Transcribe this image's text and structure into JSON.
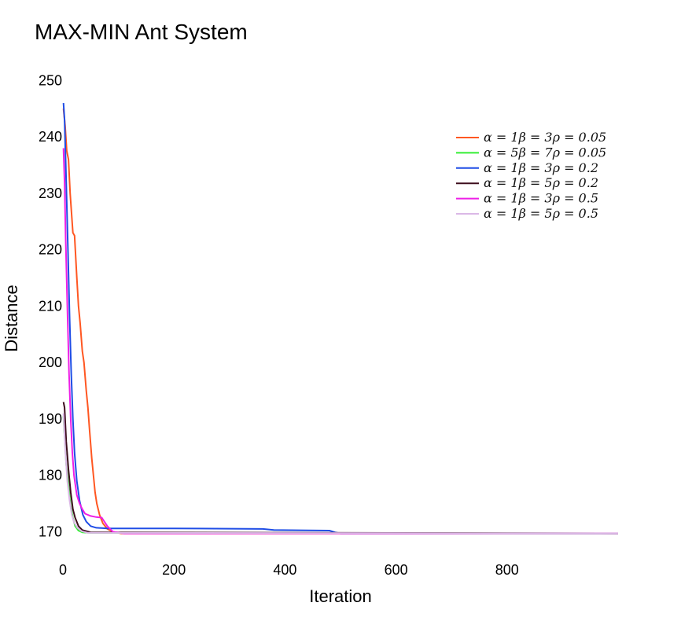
{
  "chart_data": {
    "type": "line",
    "title": "MAX-MIN Ant System",
    "xlabel": "Iteration",
    "ylabel": "Distance",
    "xlim": [
      0,
      1000
    ],
    "ylim": [
      167,
      252
    ],
    "xticks": [
      0,
      200,
      400,
      600,
      800
    ],
    "yticks": [
      170,
      180,
      190,
      200,
      210,
      220,
      230,
      240,
      250
    ],
    "grid": false,
    "legend_position": "top-right",
    "series": [
      {
        "name": "α = 1β = 3ρ = 0.05",
        "color": "#ff5722",
        "points": [
          [
            1,
            245
          ],
          [
            4,
            242
          ],
          [
            7,
            237.5
          ],
          [
            10,
            236
          ],
          [
            13,
            230
          ],
          [
            18,
            223
          ],
          [
            21,
            222.5
          ],
          [
            25,
            215
          ],
          [
            28,
            210
          ],
          [
            31,
            207
          ],
          [
            35,
            202
          ],
          [
            38,
            200
          ],
          [
            42,
            195
          ],
          [
            45,
            192
          ],
          [
            48,
            188
          ],
          [
            52,
            183
          ],
          [
            55,
            180
          ],
          [
            58,
            177
          ],
          [
            61,
            175
          ],
          [
            66,
            173
          ],
          [
            72,
            171.5
          ],
          [
            80,
            170.5
          ],
          [
            90,
            170
          ],
          [
            105,
            169.7
          ],
          [
            120,
            169.7
          ],
          [
            1000,
            169.7
          ]
        ]
      },
      {
        "name": "α = 5β = 7ρ = 0.05",
        "color": "#33ee33",
        "points": [
          [
            1,
            190.5
          ],
          [
            3,
            187
          ],
          [
            6,
            182
          ],
          [
            10,
            178
          ],
          [
            14,
            174.5
          ],
          [
            18,
            172.5
          ],
          [
            22,
            171
          ],
          [
            28,
            170.2
          ],
          [
            35,
            169.9
          ],
          [
            50,
            169.8
          ],
          [
            1000,
            169.7
          ]
        ]
      },
      {
        "name": "α = 1β = 3ρ = 0.2",
        "color": "#1f4de6",
        "points": [
          [
            1,
            246
          ],
          [
            3,
            243
          ],
          [
            6,
            232
          ],
          [
            9,
            220
          ],
          [
            12,
            208
          ],
          [
            15,
            198
          ],
          [
            18,
            190
          ],
          [
            21,
            184
          ],
          [
            25,
            179
          ],
          [
            30,
            175.5
          ],
          [
            36,
            173
          ],
          [
            42,
            171.8
          ],
          [
            50,
            171
          ],
          [
            60,
            170.7
          ],
          [
            80,
            170.6
          ],
          [
            200,
            170.6
          ],
          [
            360,
            170.5
          ],
          [
            380,
            170.3
          ],
          [
            480,
            170.2
          ],
          [
            490,
            169.9
          ],
          [
            500,
            169.7
          ],
          [
            1000,
            169.7
          ]
        ]
      },
      {
        "name": "α = 1β = 5ρ = 0.2",
        "color": "#3d0d1d",
        "points": [
          [
            1,
            193
          ],
          [
            3,
            192
          ],
          [
            6,
            186
          ],
          [
            10,
            181
          ],
          [
            14,
            177
          ],
          [
            18,
            174
          ],
          [
            22,
            172.5
          ],
          [
            28,
            171
          ],
          [
            35,
            170.3
          ],
          [
            50,
            169.9
          ],
          [
            1000,
            169.7
          ]
        ]
      },
      {
        "name": "α = 1β = 3ρ = 0.5",
        "color": "#ee1fe6",
        "points": [
          [
            1,
            238
          ],
          [
            3,
            232
          ],
          [
            5,
            222
          ],
          [
            8,
            210
          ],
          [
            11,
            198
          ],
          [
            14,
            190
          ],
          [
            17,
            184
          ],
          [
            20,
            180
          ],
          [
            25,
            176.5
          ],
          [
            30,
            175
          ],
          [
            35,
            174
          ],
          [
            40,
            173.2
          ],
          [
            50,
            172.8
          ],
          [
            60,
            172.6
          ],
          [
            70,
            172.5
          ],
          [
            80,
            171
          ],
          [
            90,
            170
          ],
          [
            110,
            169.7
          ],
          [
            1000,
            169.7
          ]
        ]
      },
      {
        "name": "α = 1β = 5ρ = 0.5",
        "color": "#dbb8e6",
        "points": [
          [
            1,
            191
          ],
          [
            4,
            185
          ],
          [
            8,
            179
          ],
          [
            12,
            175.5
          ],
          [
            16,
            173
          ],
          [
            20,
            171.7
          ],
          [
            26,
            170.7
          ],
          [
            34,
            170.1
          ],
          [
            45,
            169.8
          ],
          [
            1000,
            169.7
          ]
        ]
      }
    ]
  }
}
